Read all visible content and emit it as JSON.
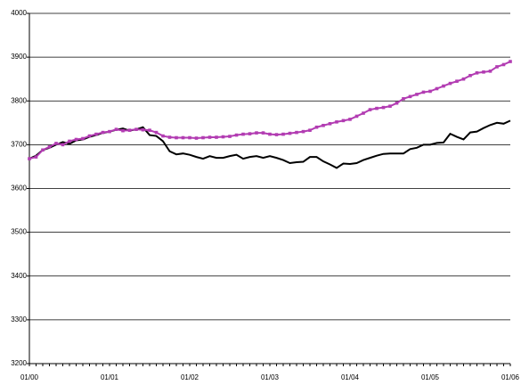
{
  "chart_data": {
    "type": "line",
    "categories": [
      "01/00",
      null,
      null,
      null,
      null,
      null,
      null,
      null,
      null,
      null,
      null,
      null,
      "01/01",
      null,
      null,
      null,
      null,
      null,
      null,
      null,
      null,
      null,
      null,
      null,
      "01/02",
      null,
      null,
      null,
      null,
      null,
      null,
      null,
      null,
      null,
      null,
      null,
      "01/03",
      null,
      null,
      null,
      null,
      null,
      null,
      null,
      null,
      null,
      null,
      null,
      "01/04",
      null,
      null,
      null,
      null,
      null,
      null,
      null,
      null,
      null,
      null,
      null,
      "01/05",
      null,
      null,
      null,
      null,
      null,
      null,
      null,
      null,
      null,
      null,
      null,
      "01/06"
    ],
    "series": [
      {
        "color": "#000000",
        "markers": false,
        "values": [
          3668,
          3675,
          3688,
          3693,
          3700,
          3706,
          3702,
          3710,
          3712,
          3718,
          3722,
          3727,
          3730,
          3734,
          3737,
          3732,
          3735,
          3740,
          3722,
          3720,
          3708,
          3685,
          3678,
          3680,
          3677,
          3672,
          3668,
          3674,
          3670,
          3670,
          3674,
          3677,
          3668,
          3672,
          3674,
          3670,
          3674,
          3670,
          3665,
          3658,
          3660,
          3661,
          3672,
          3672,
          3662,
          3655,
          3647,
          3657,
          3656,
          3658,
          3665,
          3670,
          3675,
          3679,
          3680,
          3680,
          3680,
          3690,
          3693,
          3700,
          3700,
          3704,
          3705,
          3725,
          3718,
          3712,
          3728,
          3730,
          3738,
          3745,
          3750,
          3748,
          3755
        ]
      },
      {
        "color": "#b23cb2",
        "markers": true,
        "values": [
          3668,
          3672,
          3688,
          3695,
          3703,
          3700,
          3708,
          3712,
          3714,
          3720,
          3724,
          3728,
          3730,
          3735,
          3732,
          3733,
          3735,
          3734,
          3733,
          3728,
          3720,
          3717,
          3716,
          3716,
          3716,
          3715,
          3716,
          3717,
          3717,
          3718,
          3719,
          3722,
          3724,
          3725,
          3727,
          3727,
          3724,
          3723,
          3724,
          3726,
          3728,
          3730,
          3733,
          3740,
          3744,
          3748,
          3752,
          3755,
          3758,
          3765,
          3772,
          3780,
          3783,
          3785,
          3788,
          3795,
          3805,
          3810,
          3815,
          3820,
          3822,
          3828,
          3834,
          3840,
          3845,
          3850,
          3858,
          3864,
          3866,
          3868,
          3878,
          3883,
          3890
        ]
      }
    ],
    "ylim": [
      3200,
      4000
    ],
    "yticks": [
      3200,
      3300,
      3400,
      3500,
      3600,
      3700,
      3800,
      3900,
      4000
    ],
    "grid": true
  }
}
